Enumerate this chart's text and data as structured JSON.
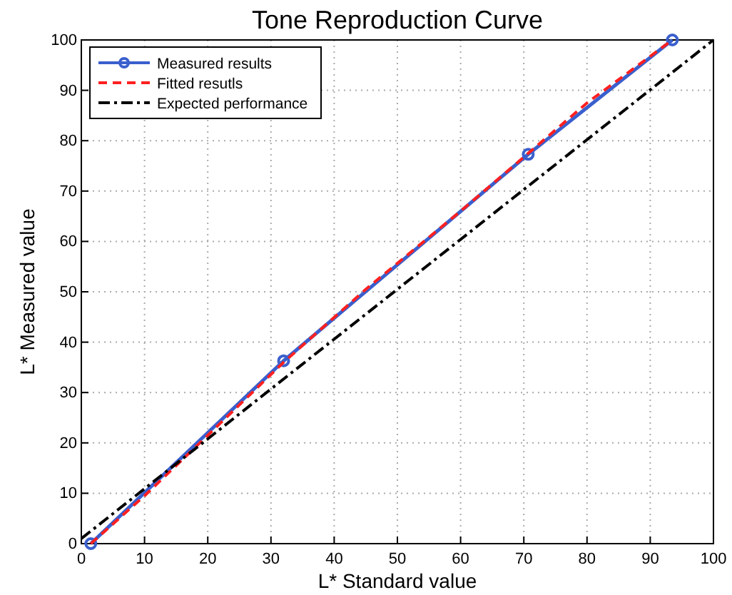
{
  "chart_data": {
    "type": "line",
    "title": "Tone Reproduction Curve",
    "xlabel": "L* Standard value",
    "ylabel": "L* Measured value",
    "xlim": [
      0,
      100
    ],
    "ylim": [
      0,
      100
    ],
    "xticks": [
      0,
      10,
      20,
      30,
      40,
      50,
      60,
      70,
      80,
      90,
      100
    ],
    "yticks": [
      0,
      10,
      20,
      30,
      40,
      50,
      60,
      70,
      80,
      90,
      100
    ],
    "grid": true,
    "legend": "top left",
    "series": [
      {
        "name": "Measured results",
        "color": "#3a5fcd",
        "marker": "circle",
        "line_style": "solid",
        "x": [
          1.5,
          32,
          70.7,
          93.5
        ],
        "values": [
          0,
          36.3,
          77.3,
          100
        ]
      },
      {
        "name": "Fitted resutls",
        "color": "#ff2020",
        "marker": "none",
        "line_style": "dashed",
        "x": [
          1.5,
          10,
          20,
          32,
          45,
          60,
          70.7,
          80,
          93.5
        ],
        "values": [
          0,
          9.5,
          21.5,
          36,
          50.5,
          66,
          77.5,
          87.5,
          100
        ]
      },
      {
        "name": "Expected performance",
        "color": "#000000",
        "marker": "none",
        "line_style": "dashdot",
        "x": [
          0,
          100
        ],
        "values": [
          1,
          100
        ]
      }
    ]
  }
}
